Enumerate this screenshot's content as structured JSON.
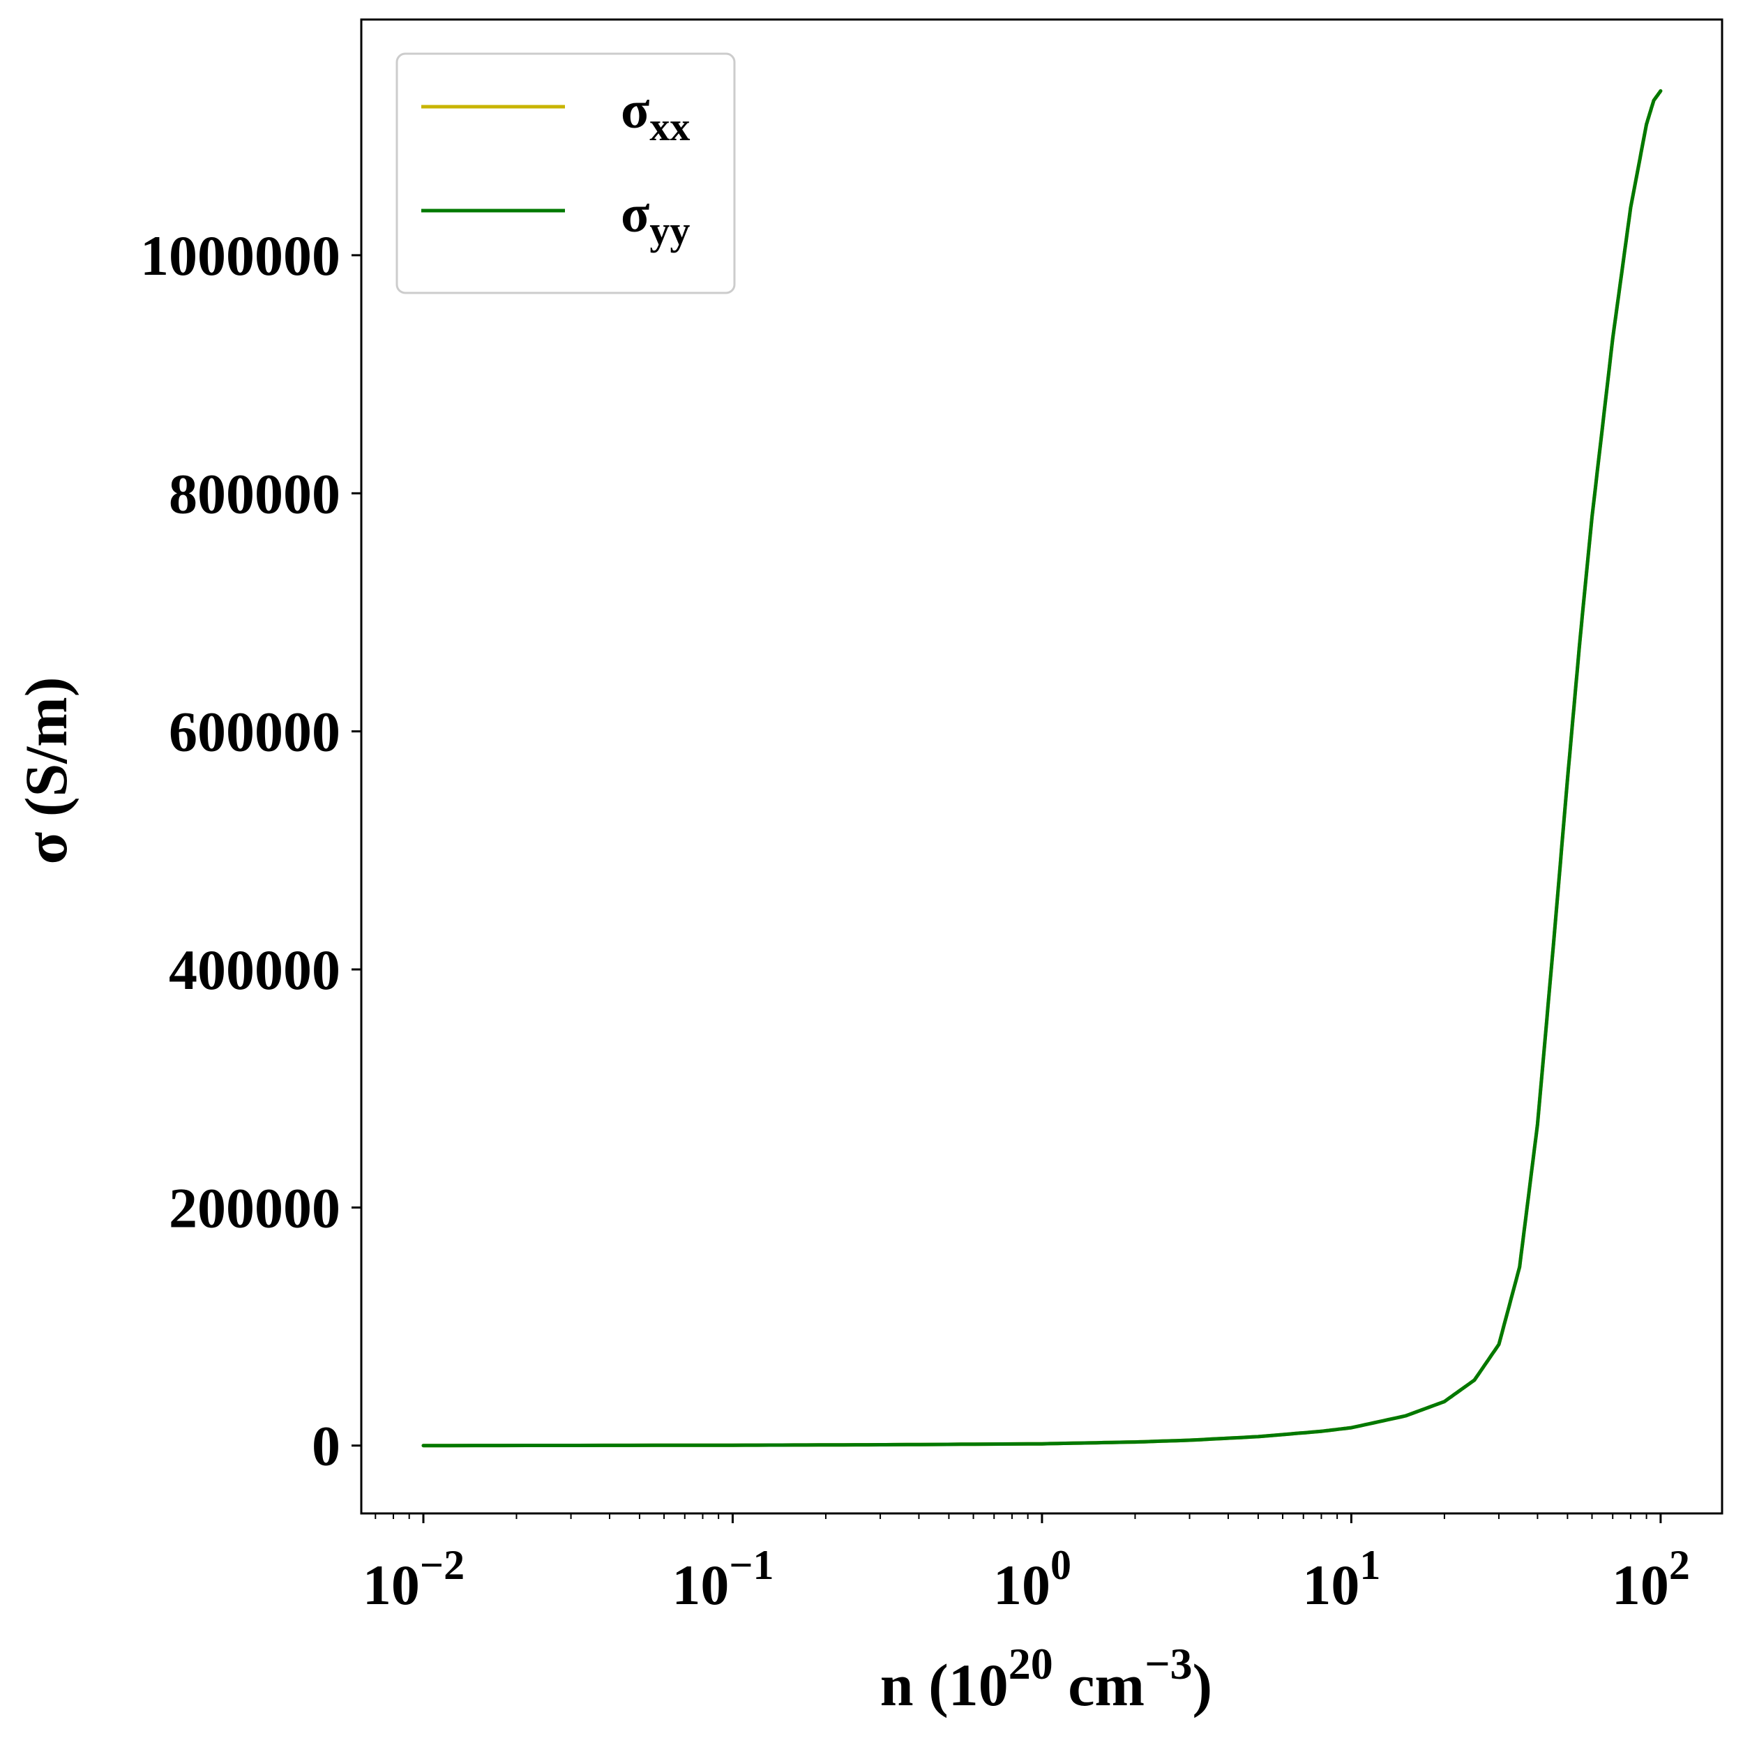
{
  "chart_data": {
    "type": "line",
    "title": "",
    "xlabel": {
      "prefix": "n (10",
      "sup1": "20",
      "mid": " cm",
      "sup2": "−3",
      "suffix": ")"
    },
    "ylabel": "σ (S/m)",
    "xscale": "log",
    "xlim": [
      0.0063,
      158
    ],
    "ylim": [
      -57000,
      1198000
    ],
    "x_ticks": [
      {
        "value": 0.01,
        "base": "10",
        "exp": "−2"
      },
      {
        "value": 0.1,
        "base": "10",
        "exp": "−1"
      },
      {
        "value": 1,
        "base": "10",
        "exp": "0"
      },
      {
        "value": 10,
        "base": "10",
        "exp": "1"
      },
      {
        "value": 100,
        "base": "10",
        "exp": "2"
      }
    ],
    "y_ticks": [
      {
        "value": 0,
        "label": "0"
      },
      {
        "value": 200000,
        "label": "200000"
      },
      {
        "value": 400000,
        "label": "400000"
      },
      {
        "value": 600000,
        "label": "600000"
      },
      {
        "value": 800000,
        "label": "800000"
      },
      {
        "value": 1000000,
        "label": "1000000"
      }
    ],
    "grid": false,
    "legend_position": "top-left",
    "series": [
      {
        "name": "σ",
        "name_sub": "xx",
        "color": "#c8b400",
        "x": [
          0.01,
          0.1,
          0.3,
          1,
          2,
          3,
          5,
          8,
          10,
          15,
          20,
          25,
          30,
          35,
          40,
          45,
          50,
          55,
          60,
          70,
          80,
          90,
          95,
          100
        ],
        "y": [
          0,
          300,
          700,
          1500,
          3000,
          4500,
          7500,
          12000,
          15000,
          25000,
          37000,
          55000,
          85000,
          150000,
          270000,
          420000,
          560000,
          680000,
          780000,
          930000,
          1040000,
          1110000,
          1130000,
          1138000
        ]
      },
      {
        "name": "σ",
        "name_sub": "yy",
        "color": "#007800",
        "x": [
          0.01,
          0.1,
          0.3,
          1,
          2,
          3,
          5,
          8,
          10,
          15,
          20,
          25,
          30,
          35,
          40,
          45,
          50,
          55,
          60,
          70,
          80,
          90,
          95,
          100
        ],
        "y": [
          0,
          300,
          700,
          1500,
          3000,
          4500,
          7500,
          12000,
          15000,
          25000,
          37000,
          55000,
          85000,
          150000,
          270000,
          420000,
          560000,
          680000,
          780000,
          930000,
          1040000,
          1110000,
          1130000,
          1138000
        ]
      }
    ],
    "colors": {
      "axes": "#000000",
      "legend_border": "#cccccc"
    }
  }
}
